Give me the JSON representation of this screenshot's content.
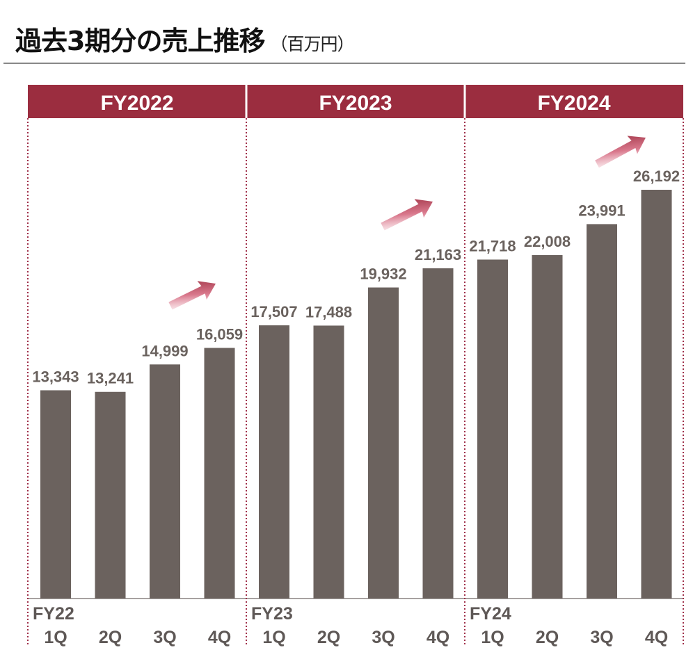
{
  "title": "過去3期分の売上推移",
  "unit": "（百万円）",
  "chart_data": {
    "type": "bar",
    "title": "過去3期分の売上推移",
    "unit": "百万円",
    "groups": [
      {
        "label": "FY2022",
        "axis_label": "FY22",
        "categories": [
          "1Q",
          "2Q",
          "3Q",
          "4Q"
        ],
        "values": [
          13343,
          13241,
          14999,
          16059
        ],
        "value_labels": [
          "13,343",
          "13,241",
          "14,999",
          "16,059"
        ]
      },
      {
        "label": "FY2023",
        "axis_label": "FY23",
        "categories": [
          "1Q",
          "2Q",
          "3Q",
          "4Q"
        ],
        "values": [
          17507,
          17488,
          19932,
          21163
        ],
        "value_labels": [
          "17,507",
          "17,488",
          "19,932",
          "21,163"
        ]
      },
      {
        "label": "FY2024",
        "axis_label": "FY24",
        "categories": [
          "1Q",
          "2Q",
          "3Q",
          "4Q"
        ],
        "values": [
          21718,
          22008,
          23991,
          26192
        ],
        "value_labels": [
          "21,718",
          "22,008",
          "23,991",
          "26,192"
        ]
      }
    ],
    "ylim": [
      0,
      26192
    ],
    "grid": false,
    "colors": {
      "bar": "#6b625e",
      "header": "#9b2d3f",
      "divider": "#a0304a",
      "arrow_start": "#f3c6cf",
      "arrow_end": "#9b2d3f"
    },
    "annotations": [
      "growth-arrow",
      "growth-arrow",
      "growth-arrow"
    ]
  }
}
